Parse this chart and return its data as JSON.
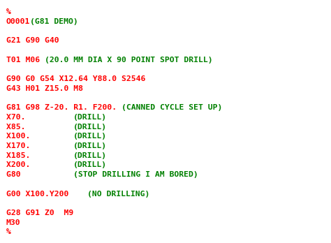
{
  "background_color": "#ffffff",
  "font_size": 8.2,
  "red": "#cc0000",
  "green": "#228B22",
  "lines": [
    [
      {
        "text": "%",
        "color": "red"
      }
    ],
    [
      {
        "text": "O0001",
        "color": "red"
      },
      {
        "text": "(G81 DEMO)",
        "color": "green"
      }
    ],
    [],
    [
      {
        "text": "G21 G90 G40",
        "color": "red"
      }
    ],
    [],
    [
      {
        "text": "T01 M06 ",
        "color": "red"
      },
      {
        "text": "(20.0 MM DIA X 90 POINT SPOT DRILL)",
        "color": "green"
      }
    ],
    [],
    [
      {
        "text": "G90 G0 G54 X12.64 Y88.0 S2546",
        "color": "red"
      }
    ],
    [
      {
        "text": "G43 H01 Z15.0 M8",
        "color": "red"
      }
    ],
    [],
    [
      {
        "text": "G81 G98 Z-20. R1. F200. ",
        "color": "red"
      },
      {
        "text": "(CANNED CYCLE SET UP)",
        "color": "green"
      }
    ],
    [
      {
        "text": "X70.          ",
        "color": "red"
      },
      {
        "text": "(DRILL)",
        "color": "green"
      }
    ],
    [
      {
        "text": "X85.          ",
        "color": "red"
      },
      {
        "text": "(DRILL)",
        "color": "green"
      }
    ],
    [
      {
        "text": "X100.         ",
        "color": "red"
      },
      {
        "text": "(DRILL)",
        "color": "green"
      }
    ],
    [
      {
        "text": "X170.         ",
        "color": "red"
      },
      {
        "text": "(DRILL)",
        "color": "green"
      }
    ],
    [
      {
        "text": "X185.         ",
        "color": "red"
      },
      {
        "text": "(DRILL)",
        "color": "green"
      }
    ],
    [
      {
        "text": "X200.         ",
        "color": "red"
      },
      {
        "text": "(DRILL)",
        "color": "green"
      }
    ],
    [
      {
        "text": "G80           ",
        "color": "red"
      },
      {
        "text": "(STOP DRILLING I AM BORED)",
        "color": "green"
      }
    ],
    [],
    [
      {
        "text": "G00 X100.Y200    ",
        "color": "red"
      },
      {
        "text": "(NO DRILLING)",
        "color": "green"
      }
    ],
    [],
    [
      {
        "text": "G28 G91 Z0  M9",
        "color": "red"
      }
    ],
    [
      {
        "text": "M30",
        "color": "red"
      }
    ],
    [
      {
        "text": "%",
        "color": "red"
      }
    ]
  ]
}
